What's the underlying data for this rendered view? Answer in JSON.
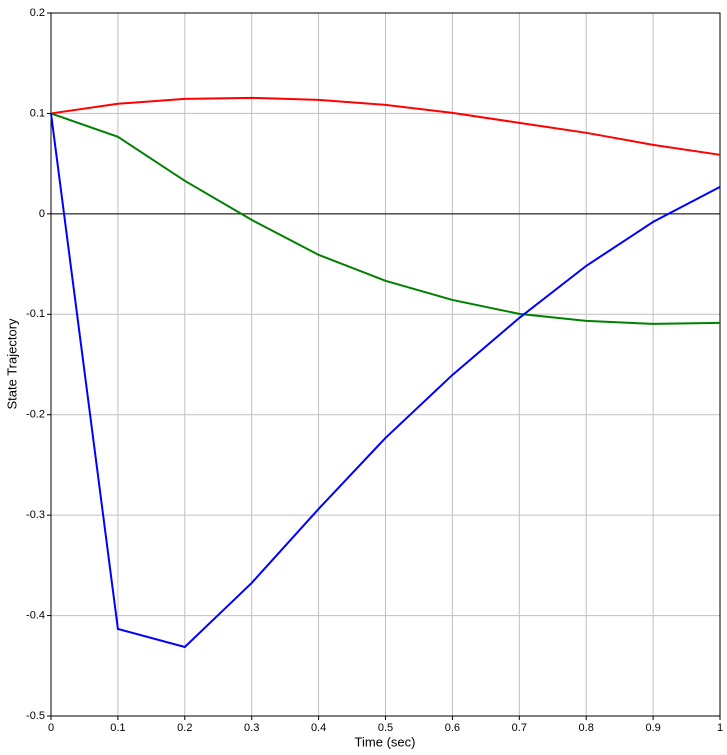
{
  "chart_data": {
    "type": "line",
    "x_label": "Time (sec)",
    "y_label": "State Trajectory",
    "x": [
      0,
      0.1,
      0.2,
      0.3,
      0.4,
      0.5,
      0.6,
      0.7,
      0.8,
      0.9,
      1
    ],
    "series": [
      {
        "color": "#ff0000",
        "values": [
          0.1,
          0.1096,
          0.1145,
          0.1155,
          0.1135,
          0.1085,
          0.1006,
          0.0906,
          0.0807,
          0.0687,
          0.0588
        ]
      },
      {
        "color": "#008000",
        "values": [
          0.1,
          0.0767,
          0.0329,
          -0.006,
          -0.0408,
          -0.0667,
          -0.0857,
          -0.0996,
          -0.1066,
          -0.1096,
          -0.1086
        ]
      },
      {
        "color": "#0000ff",
        "values": [
          0.1,
          -0.4133,
          -0.4313,
          -0.3675,
          -0.2938,
          -0.2231,
          -0.1604,
          -0.1036,
          -0.0518,
          -0.008,
          0.0269
        ]
      }
    ],
    "xlim": [
      0,
      1
    ],
    "xticks": [
      0,
      0.1,
      0.2,
      0.3,
      0.4,
      0.5,
      0.6,
      0.7,
      0.8,
      0.9,
      1
    ],
    "ylim": [
      -0.5,
      0.2
    ],
    "yticks": [
      0.2,
      0.1,
      0,
      -0.1,
      -0.2,
      -0.3,
      -0.4,
      -0.5
    ],
    "grid": true,
    "zero_line": true
  }
}
